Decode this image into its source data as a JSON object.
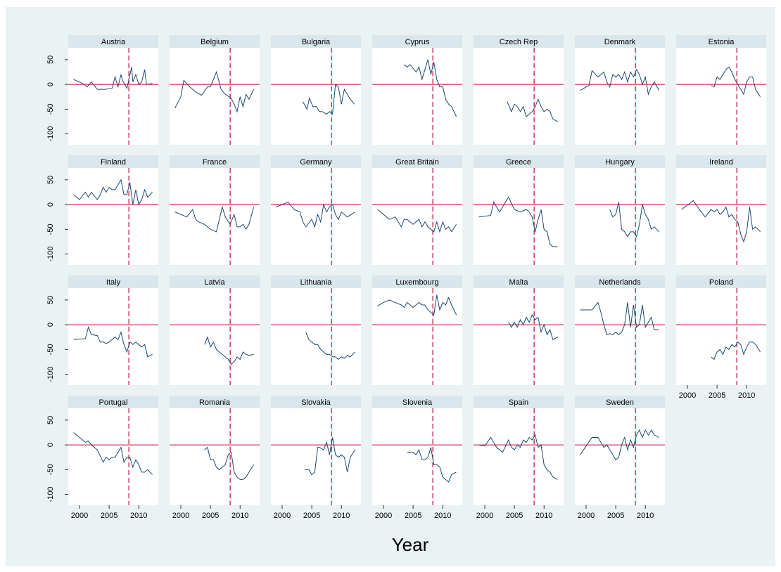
{
  "chart_data": {
    "type": "line",
    "x_label": "Year",
    "xlim": [
      1998.1,
      2013.3
    ],
    "ylim": [
      -122,
      74
    ],
    "xticks": [
      2000,
      2005,
      2010
    ],
    "yticks": [
      50,
      0,
      -50,
      -100
    ],
    "color": "#1a476f",
    "reference_y": 0,
    "reference_x": 2008.33,
    "reference_color": "#c10534",
    "panels": [
      {
        "title": "Austria",
        "x": [
          1999,
          2000.5,
          2001.3,
          2002,
          2003,
          2003.8,
          2004.3,
          2005.5,
          2006,
          2006.5,
          2007,
          2007.2,
          2008,
          2008.8,
          2009,
          2009.5,
          2010,
          2010.5,
          2011,
          2011.3,
          2012.3
        ],
        "y": [
          10,
          2,
          -5,
          5,
          -10,
          -10,
          -10,
          -8,
          15,
          -5,
          20,
          10,
          -8,
          35,
          5,
          20,
          0,
          5,
          30,
          0,
          2
        ]
      },
      {
        "title": "Belgium",
        "x": [
          1999,
          2000,
          2000.5,
          2001.5,
          2002.5,
          2003.5,
          2004.5,
          2005,
          2006,
          2006.8,
          2007.5,
          2008.5,
          2009,
          2009.5,
          2010,
          2010.5,
          2011,
          2011.5,
          2012.3
        ],
        "y": [
          -48,
          -25,
          8,
          -5,
          -15,
          -22,
          -5,
          -5,
          25,
          -10,
          -20,
          -28,
          -40,
          -55,
          -25,
          -45,
          -20,
          -30,
          -10
        ]
      },
      {
        "title": "Bulgaria",
        "x": [
          2003.5,
          2004.2,
          2004.6,
          2005.2,
          2005.8,
          2006.3,
          2006.8,
          2007.5,
          2008,
          2008.5,
          2009,
          2009.5,
          2010,
          2010.5,
          2011,
          2011.5,
          2012.2
        ],
        "y": [
          -35,
          -50,
          -28,
          -45,
          -45,
          -55,
          -55,
          -60,
          -55,
          -60,
          0,
          -5,
          -40,
          -10,
          -20,
          -30,
          -40
        ]
      },
      {
        "title": "Cyprus",
        "x": [
          2003.5,
          2004,
          2004.5,
          2005.5,
          2006,
          2006.5,
          2007,
          2007.5,
          2008,
          2008.5,
          2009,
          2009.5,
          2010,
          2010.5,
          2011,
          2011.5,
          2012.3
        ],
        "y": [
          40,
          35,
          40,
          25,
          35,
          10,
          30,
          50,
          20,
          45,
          10,
          -5,
          -5,
          -30,
          -40,
          -45,
          -65
        ]
      },
      {
        "title": "Czech Rep",
        "x": [
          2003.8,
          2004.5,
          2005,
          2005.5,
          2006,
          2006.5,
          2007,
          2007.5,
          2008,
          2008.5,
          2009,
          2009.5,
          2010,
          2010.5,
          2011,
          2011.5,
          2012.3
        ],
        "y": [
          -35,
          -55,
          -40,
          -45,
          -55,
          -45,
          -65,
          -60,
          -55,
          -45,
          -30,
          -45,
          -55,
          -50,
          -55,
          -70,
          -75
        ]
      },
      {
        "title": "Denmark",
        "x": [
          1999,
          2000.5,
          2001,
          2002,
          2003,
          2003.5,
          2004,
          2004.5,
          2005,
          2005.5,
          2006,
          2006.5,
          2007,
          2007.5,
          2008,
          2008.5,
          2009,
          2009.5,
          2010,
          2010.5,
          2011,
          2011.5,
          2012.3
        ],
        "y": [
          -12,
          -2,
          28,
          15,
          25,
          5,
          -5,
          20,
          15,
          20,
          10,
          25,
          5,
          25,
          15,
          30,
          20,
          0,
          15,
          -20,
          -5,
          5,
          -12
        ]
      },
      {
        "title": "Estonia",
        "x": [
          2004,
          2004.5,
          2005,
          2005.5,
          2006,
          2006.5,
          2007,
          2007.5,
          2008,
          2008.5,
          2009,
          2009.5,
          2010,
          2010.5,
          2011,
          2011.5,
          2012.3
        ],
        "y": [
          -2,
          -5,
          15,
          10,
          20,
          30,
          35,
          25,
          10,
          0,
          -10,
          -20,
          5,
          15,
          15,
          -10,
          -25
        ]
      },
      {
        "title": "Finland",
        "x": [
          1999,
          2000,
          2001,
          2001.5,
          2002,
          2003,
          2003.5,
          2004,
          2004.5,
          2005,
          2005.5,
          2006,
          2006.5,
          2007,
          2007.5,
          2008,
          2008.5,
          2009,
          2009.5,
          2010,
          2010.5,
          2011,
          2011.5,
          2012.3
        ],
        "y": [
          20,
          10,
          25,
          15,
          25,
          10,
          20,
          35,
          25,
          35,
          30,
          30,
          40,
          50,
          20,
          20,
          45,
          0,
          30,
          0,
          10,
          30,
          15,
          25
        ]
      },
      {
        "title": "France",
        "x": [
          1999,
          2001,
          2002,
          2002.5,
          2003,
          2004,
          2005,
          2006,
          2007,
          2007.5,
          2008.3,
          2009,
          2009.5,
          2010,
          2010.5,
          2011,
          2011.5,
          2012.3
        ],
        "y": [
          -15,
          -25,
          -10,
          -30,
          -35,
          -40,
          -50,
          -55,
          -5,
          -25,
          -40,
          -20,
          -45,
          -45,
          -40,
          -50,
          -40,
          -5
        ]
      },
      {
        "title": "Germany",
        "x": [
          1999,
          2001,
          2002,
          2003,
          2003.5,
          2004,
          2005,
          2005.5,
          2006,
          2006.5,
          2007,
          2007.5,
          2008,
          2008.5,
          2009,
          2009.5,
          2010,
          2011,
          2012.3
        ],
        "y": [
          -5,
          5,
          -10,
          -15,
          -35,
          -45,
          -30,
          -45,
          -20,
          -35,
          0,
          -15,
          -5,
          0,
          -20,
          -30,
          -15,
          -25,
          -15
        ]
      },
      {
        "title": "Great Britain",
        "x": [
          1999,
          2000,
          2001,
          2002,
          2003,
          2003.5,
          2004,
          2005,
          2006,
          2006.5,
          2007,
          2007.5,
          2008,
          2008.5,
          2009,
          2009.5,
          2010,
          2010.5,
          2011,
          2011.5,
          2012.3
        ],
        "y": [
          -10,
          -20,
          -30,
          -25,
          -45,
          -30,
          -30,
          -40,
          -30,
          -45,
          -35,
          -45,
          -50,
          -55,
          -35,
          -55,
          -35,
          -50,
          -45,
          -55,
          -40
        ]
      },
      {
        "title": "Greece",
        "x": [
          1999,
          2001,
          2001.5,
          2002.5,
          2003,
          2004,
          2005,
          2006,
          2007,
          2007.5,
          2008,
          2008.5,
          2009,
          2009.5,
          2010,
          2010.5,
          2011,
          2011.5,
          2012.3
        ],
        "y": [
          -25,
          -22,
          5,
          -15,
          -5,
          15,
          -10,
          -15,
          -10,
          -15,
          -25,
          -55,
          -30,
          -10,
          -50,
          -55,
          -80,
          -85,
          -85
        ]
      },
      {
        "title": "Hungary",
        "x": [
          2004,
          2004.5,
          2005,
          2005.5,
          2006,
          2006.5,
          2007,
          2007.5,
          2008,
          2008.5,
          2009,
          2009.5,
          2010,
          2010.5,
          2011,
          2011.5,
          2012.3
        ],
        "y": [
          -10,
          -25,
          -20,
          5,
          -50,
          -55,
          -65,
          -55,
          -55,
          -65,
          -40,
          0,
          -20,
          -30,
          -50,
          -45,
          -55
        ]
      },
      {
        "title": "Ireland",
        "x": [
          1999,
          2001,
          2002,
          2003,
          2004,
          2004.5,
          2005,
          2005.5,
          2006,
          2006.5,
          2007,
          2007.5,
          2008,
          2008.5,
          2009,
          2009.5,
          2010,
          2010.5,
          2011,
          2011.5,
          2012.3
        ],
        "y": [
          -10,
          8,
          -10,
          -25,
          -10,
          -15,
          -10,
          -20,
          -15,
          -5,
          -25,
          -20,
          -30,
          -35,
          -60,
          -75,
          -55,
          -5,
          -50,
          -45,
          -55
        ]
      },
      {
        "title": "Italy",
        "x": [
          1999,
          2001,
          2001.5,
          2002,
          2003,
          2003.5,
          2004,
          2004.5,
          2005,
          2006,
          2006.5,
          2007,
          2007.5,
          2008,
          2008.5,
          2009,
          2009.5,
          2010,
          2010.5,
          2011,
          2011.5,
          2012.3
        ],
        "y": [
          -30,
          -28,
          -5,
          -20,
          -22,
          -35,
          -35,
          -38,
          -35,
          -25,
          -30,
          -15,
          -40,
          -55,
          -35,
          -40,
          -35,
          -40,
          -45,
          -40,
          -65,
          -60
        ]
      },
      {
        "title": "Latvia",
        "x": [
          2004,
          2004.5,
          2005,
          2005.5,
          2006,
          2006.5,
          2007,
          2007.5,
          2008,
          2008.5,
          2009,
          2009.5,
          2010,
          2010.5,
          2011,
          2011.5,
          2012.3
        ],
        "y": [
          -40,
          -25,
          -45,
          -35,
          -50,
          -55,
          -60,
          -65,
          -70,
          -80,
          -75,
          -65,
          -70,
          -55,
          -60,
          -62,
          -60
        ]
      },
      {
        "title": "Lithuania",
        "x": [
          2004,
          2004.5,
          2005,
          2005.5,
          2006,
          2006.5,
          2007,
          2007.5,
          2008,
          2008.5,
          2009,
          2009.5,
          2010,
          2010.5,
          2011,
          2011.5,
          2012.3
        ],
        "y": [
          -15,
          -30,
          -35,
          -40,
          -40,
          -50,
          -55,
          -60,
          -60,
          -65,
          -65,
          -70,
          -65,
          -68,
          -62,
          -65,
          -55
        ]
      },
      {
        "title": "Luxembourg",
        "x": [
          1999,
          2000,
          2001,
          2002,
          2003,
          2003.5,
          2004,
          2005,
          2006,
          2006.5,
          2007,
          2007.5,
          2008,
          2008.5,
          2009,
          2009.5,
          2010,
          2010.5,
          2011,
          2011.5,
          2012.3
        ],
        "y": [
          38,
          45,
          50,
          45,
          40,
          35,
          45,
          35,
          45,
          40,
          40,
          30,
          25,
          20,
          60,
          30,
          45,
          40,
          55,
          40,
          20
        ]
      },
      {
        "title": "Malta",
        "x": [
          2004,
          2004.5,
          2005,
          2005.5,
          2006,
          2006.5,
          2007,
          2007.5,
          2008,
          2008.5,
          2009,
          2009.5,
          2010,
          2010.5,
          2011,
          2011.5,
          2012.3
        ],
        "y": [
          5,
          -5,
          5,
          -5,
          10,
          0,
          15,
          5,
          20,
          10,
          15,
          -15,
          0,
          -20,
          -10,
          -30,
          -25
        ]
      },
      {
        "title": "Netherlands",
        "x": [
          1999,
          2001,
          2002,
          2002.5,
          2003,
          2003.5,
          2004,
          2004.5,
          2005,
          2005.5,
          2006,
          2006.5,
          2007,
          2007.5,
          2008,
          2008.5,
          2009,
          2009.5,
          2010,
          2010.5,
          2011,
          2011.5,
          2012.3
        ],
        "y": [
          30,
          30,
          45,
          25,
          0,
          -20,
          -18,
          -20,
          -15,
          -20,
          -15,
          0,
          45,
          -5,
          40,
          -5,
          0,
          40,
          -5,
          5,
          15,
          -10,
          -10
        ]
      },
      {
        "title": "Poland",
        "x": [
          2004,
          2004.5,
          2005,
          2005.5,
          2006,
          2006.5,
          2007,
          2007.5,
          2008,
          2008.5,
          2009,
          2009.5,
          2010,
          2010.5,
          2011,
          2011.5,
          2012.3
        ],
        "y": [
          -65,
          -70,
          -55,
          -50,
          -60,
          -45,
          -50,
          -40,
          -45,
          -35,
          -40,
          -60,
          -45,
          -35,
          -35,
          -40,
          -55
        ]
      },
      {
        "title": "Portugal",
        "x": [
          1999,
          2000,
          2001,
          2001.5,
          2002,
          2003,
          2004,
          2004.5,
          2005,
          2005.5,
          2006,
          2006.5,
          2007,
          2007.5,
          2008,
          2008.5,
          2009,
          2009.5,
          2010,
          2010.5,
          2011,
          2011.5,
          2012.3
        ],
        "y": [
          25,
          15,
          5,
          8,
          0,
          -10,
          -35,
          -25,
          -30,
          -25,
          -25,
          -15,
          -5,
          -35,
          -25,
          -25,
          -45,
          -30,
          -40,
          -55,
          -55,
          -50,
          -60
        ]
      },
      {
        "title": "Romania",
        "x": [
          2004,
          2004.5,
          2005,
          2005.5,
          2006,
          2006.5,
          2007,
          2007.5,
          2008,
          2008.5,
          2009,
          2009.5,
          2010,
          2010.5,
          2011,
          2011.5,
          2012.3
        ],
        "y": [
          -10,
          -5,
          -30,
          -30,
          -45,
          -50,
          -45,
          -40,
          -20,
          -15,
          -55,
          -65,
          -70,
          -70,
          -65,
          -55,
          -40
        ]
      },
      {
        "title": "Slovakia",
        "x": [
          2003.8,
          2004.5,
          2005,
          2005.5,
          2006,
          2006.3,
          2007,
          2007.5,
          2008,
          2008.5,
          2009,
          2009.5,
          2010,
          2010.5,
          2011,
          2011.5,
          2012.3
        ],
        "y": [
          -50,
          -50,
          -60,
          -55,
          -5,
          -5,
          -10,
          5,
          -20,
          15,
          -20,
          -25,
          -20,
          -25,
          -55,
          -25,
          -10
        ]
      },
      {
        "title": "Slovenia",
        "x": [
          2004,
          2005,
          2005.5,
          2006,
          2006.5,
          2007,
          2007.5,
          2008,
          2008.5,
          2009,
          2009.5,
          2010,
          2010.5,
          2011,
          2011.5,
          2012.3
        ],
        "y": [
          -15,
          -15,
          -20,
          -10,
          -30,
          -30,
          -25,
          -5,
          -40,
          -40,
          -45,
          -65,
          -70,
          -75,
          -60,
          -55
        ]
      },
      {
        "title": "Spain",
        "x": [
          1999,
          2000,
          2001,
          2002,
          2002.5,
          2003,
          2004,
          2004.5,
          2005,
          2005.5,
          2006,
          2006.5,
          2007,
          2007.5,
          2008,
          2008.5,
          2009,
          2009.5,
          2010,
          2010.5,
          2011,
          2011.5,
          2012.3
        ],
        "y": [
          0,
          -2,
          15,
          -5,
          -10,
          -15,
          10,
          -5,
          -10,
          0,
          -5,
          10,
          5,
          15,
          10,
          20,
          -5,
          0,
          -40,
          -50,
          -55,
          -65,
          -70
        ]
      },
      {
        "title": "Sweden",
        "x": [
          1999,
          2001,
          2002,
          2003,
          2003.5,
          2004,
          2005,
          2005.5,
          2006,
          2006.5,
          2007,
          2007.5,
          2008,
          2008.5,
          2009,
          2009.5,
          2010,
          2010.5,
          2011,
          2011.5,
          2012.3
        ],
        "y": [
          -20,
          15,
          15,
          -5,
          0,
          -10,
          -30,
          -25,
          0,
          15,
          -10,
          10,
          -5,
          20,
          30,
          15,
          30,
          20,
          30,
          20,
          15
        ]
      }
    ]
  }
}
